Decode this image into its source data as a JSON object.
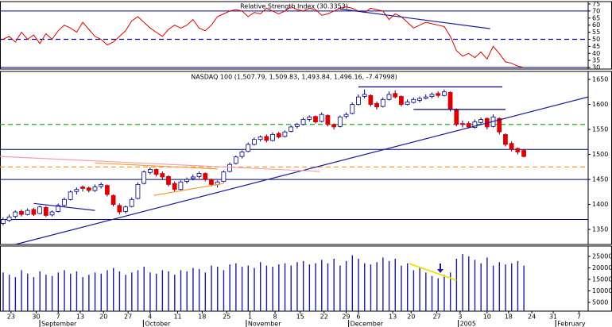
{
  "chart_data": [
    {
      "type": "line",
      "title": "Relative Strength Index (30.3353)",
      "color": "#dd0000",
      "values": [
        50,
        52,
        48,
        55,
        50,
        53,
        47,
        54,
        50,
        56,
        60,
        58,
        55,
        62,
        57,
        52,
        50,
        46,
        48,
        52,
        56,
        63,
        66,
        62,
        58,
        55,
        52,
        57,
        60,
        58,
        60,
        64,
        58,
        56,
        60,
        66,
        68,
        70,
        71,
        70,
        66,
        69,
        68,
        72,
        70,
        68,
        70,
        73,
        71,
        70,
        72,
        71,
        67,
        68,
        70,
        72,
        73,
        72,
        70,
        69,
        72,
        71,
        70,
        64,
        68,
        66,
        62,
        58,
        60,
        62,
        61,
        60,
        59,
        52,
        42,
        38,
        40,
        37,
        41,
        36,
        45,
        40,
        34,
        33,
        31,
        30
      ],
      "xlim": [
        -0.5,
        95.5
      ],
      "ylim": [
        28.9,
        76.7
      ],
      "yticks": [
        30,
        35,
        40,
        45,
        50,
        55,
        60,
        65,
        70,
        75
      ],
      "levels": [
        {
          "value": 70,
          "color": "#000080",
          "dash": false
        },
        {
          "value": 50,
          "color": "#000080",
          "dash": true
        },
        {
          "value": 30,
          "color": "#000080",
          "dash": false
        }
      ],
      "lines": [
        {
          "color": "#1a1aa0",
          "start": [
            55,
            71.5
          ],
          "end": [
            79.5,
            57.5
          ]
        }
      ]
    },
    {
      "type": "candlestick",
      "title": "NASDAQ 100 (1,507.79, 1,509.83, 1,493.84, 1,496.16, -7.47998)",
      "up_color": "#ffffff",
      "down_color": "#dd0000",
      "edge_color": "#000080",
      "ohlc": [
        [
          1362,
          1374,
          1358,
          1370
        ],
        [
          1368,
          1380,
          1365,
          1375
        ],
        [
          1376,
          1388,
          1372,
          1385
        ],
        [
          1386,
          1390,
          1376,
          1380
        ],
        [
          1380,
          1392,
          1378,
          1388
        ],
        [
          1390,
          1393,
          1377,
          1380
        ],
        [
          1382,
          1398,
          1380,
          1395
        ],
        [
          1394,
          1397,
          1375,
          1378
        ],
        [
          1379,
          1388,
          1376,
          1385
        ],
        [
          1386,
          1402,
          1384,
          1398
        ],
        [
          1398,
          1414,
          1395,
          1410
        ],
        [
          1410,
          1428,
          1408,
          1425
        ],
        [
          1426,
          1434,
          1420,
          1430
        ],
        [
          1435,
          1438,
          1426,
          1432
        ],
        [
          1433,
          1436,
          1424,
          1428
        ],
        [
          1428,
          1440,
          1425,
          1435
        ],
        [
          1436,
          1444,
          1432,
          1440
        ],
        [
          1438,
          1440,
          1416,
          1420
        ],
        [
          1418,
          1420,
          1396,
          1400
        ],
        [
          1398,
          1402,
          1380,
          1385
        ],
        [
          1386,
          1398,
          1382,
          1395
        ],
        [
          1396,
          1414,
          1394,
          1410
        ],
        [
          1412,
          1444,
          1410,
          1440
        ],
        [
          1442,
          1468,
          1440,
          1465
        ],
        [
          1464,
          1474,
          1460,
          1470
        ],
        [
          1470,
          1472,
          1456,
          1460
        ],
        [
          1462,
          1466,
          1450,
          1455
        ],
        [
          1456,
          1458,
          1436,
          1440
        ],
        [
          1442,
          1446,
          1426,
          1430
        ],
        [
          1430,
          1448,
          1428,
          1445
        ],
        [
          1446,
          1454,
          1442,
          1450
        ],
        [
          1452,
          1460,
          1448,
          1455
        ],
        [
          1456,
          1466,
          1452,
          1462
        ],
        [
          1462,
          1464,
          1446,
          1450
        ],
        [
          1450,
          1452,
          1436,
          1440
        ],
        [
          1440,
          1448,
          1434,
          1445
        ],
        [
          1446,
          1468,
          1444,
          1465
        ],
        [
          1466,
          1484,
          1464,
          1480
        ],
        [
          1482,
          1498,
          1480,
          1495
        ],
        [
          1496,
          1508,
          1492,
          1505
        ],
        [
          1506,
          1524,
          1504,
          1520
        ],
        [
          1520,
          1534,
          1518,
          1530
        ],
        [
          1530,
          1538,
          1526,
          1535
        ],
        [
          1536,
          1540,
          1524,
          1528
        ],
        [
          1528,
          1544,
          1526,
          1540
        ],
        [
          1542,
          1545,
          1532,
          1535
        ],
        [
          1536,
          1548,
          1534,
          1545
        ],
        [
          1546,
          1558,
          1544,
          1555
        ],
        [
          1556,
          1563,
          1552,
          1560
        ],
        [
          1560,
          1574,
          1558,
          1570
        ],
        [
          1570,
          1578,
          1566,
          1575
        ],
        [
          1576,
          1578,
          1562,
          1565
        ],
        [
          1566,
          1584,
          1564,
          1580
        ],
        [
          1578,
          1580,
          1556,
          1560
        ],
        [
          1560,
          1562,
          1550,
          1555
        ],
        [
          1556,
          1578,
          1554,
          1575
        ],
        [
          1576,
          1584,
          1572,
          1580
        ],
        [
          1582,
          1604,
          1580,
          1600
        ],
        [
          1600,
          1620,
          1598,
          1615
        ],
        [
          1616,
          1630,
          1612,
          1620
        ],
        [
          1618,
          1620,
          1596,
          1600
        ],
        [
          1602,
          1606,
          1590,
          1595
        ],
        [
          1596,
          1614,
          1594,
          1610
        ],
        [
          1610,
          1626,
          1608,
          1620
        ],
        [
          1622,
          1628,
          1612,
          1615
        ],
        [
          1616,
          1618,
          1596,
          1600
        ],
        [
          1600,
          1610,
          1598,
          1605
        ],
        [
          1604,
          1614,
          1602,
          1610
        ],
        [
          1608,
          1616,
          1604,
          1612
        ],
        [
          1612,
          1620,
          1610,
          1615
        ],
        [
          1616,
          1624,
          1612,
          1620
        ],
        [
          1622,
          1626,
          1614,
          1618
        ],
        [
          1618,
          1630,
          1616,
          1625
        ],
        [
          1624,
          1626,
          1586,
          1590
        ],
        [
          1590,
          1592,
          1556,
          1560
        ],
        [
          1562,
          1568,
          1554,
          1560
        ],
        [
          1562,
          1566,
          1552,
          1555
        ],
        [
          1554,
          1570,
          1552,
          1565
        ],
        [
          1564,
          1574,
          1560,
          1570
        ],
        [
          1572,
          1574,
          1550,
          1555
        ],
        [
          1556,
          1580,
          1554,
          1575
        ],
        [
          1572,
          1574,
          1540,
          1545
        ],
        [
          1540,
          1542,
          1516,
          1520
        ],
        [
          1522,
          1526,
          1506,
          1510
        ],
        [
          1512,
          1514,
          1500,
          1505
        ],
        [
          1508,
          1510,
          1494,
          1496
        ]
      ],
      "xlim": [
        -0.5,
        95.5
      ],
      "ylim": [
        1320,
        1666
      ],
      "yticks": [
        1350,
        1400,
        1450,
        1500,
        1550,
        1600,
        1650
      ],
      "levels": [
        {
          "value": 1560,
          "color": "#22aa22",
          "dash": true
        },
        {
          "value": 1510,
          "color": "#000080",
          "dash": false
        },
        {
          "value": 1475,
          "color": "#ff9933",
          "dash": true
        },
        {
          "value": 1450,
          "color": "#000080",
          "dash": false
        },
        {
          "value": 1370,
          "color": "#000080",
          "dash": false
        }
      ],
      "lines": [
        {
          "color": "#1a1aa0",
          "start": [
            2,
            1320
          ],
          "end": [
            95.5,
            1615
          ]
        },
        {
          "color": "#000080",
          "start": [
            58,
            1635
          ],
          "end": [
            81.5,
            1635
          ]
        },
        {
          "color": "#000080",
          "start": [
            67,
            1590
          ],
          "end": [
            82,
            1590
          ]
        },
        {
          "color": "#f4a0b0",
          "start": [
            -0.5,
            1496
          ],
          "end": [
            51.7,
            1466
          ]
        },
        {
          "color": "#ff9933",
          "start": [
            15,
            1483
          ],
          "end": [
            35,
            1471
          ]
        },
        {
          "color": "#ff9933",
          "start": [
            24.6,
            1418
          ],
          "end": [
            36,
            1442
          ]
        },
        {
          "color": "#1a1aa0",
          "start": [
            5,
            1402
          ],
          "end": [
            15,
            1388
          ]
        }
      ]
    },
    {
      "type": "bar",
      "color": "#1a1aa0",
      "values": [
        18000,
        17000,
        16000,
        19000,
        17500,
        16000,
        18500,
        17000,
        16500,
        18000,
        19000,
        17500,
        18500,
        16000,
        17000,
        18000,
        17500,
        19000,
        20000,
        18500,
        17000,
        18000,
        19000,
        20500,
        18000,
        17500,
        19000,
        18500,
        17000,
        19000,
        18500,
        20000,
        19500,
        18000,
        21000,
        20500,
        19000,
        21500,
        22000,
        20500,
        21000,
        20000,
        22500,
        21000,
        20500,
        21500,
        22000,
        21000,
        22500,
        23000,
        21500,
        22000,
        23500,
        22000,
        24000,
        21000,
        23000,
        25500,
        24000,
        22000,
        21500,
        22500,
        24500,
        23000,
        24000,
        21000,
        22000,
        19000,
        20000,
        18000,
        16500,
        15500,
        17000,
        18000,
        24000,
        26000,
        25000,
        23500,
        22000,
        24500,
        21000,
        22500,
        21500,
        22000,
        23000,
        21000
      ],
      "xlim": [
        -0.5,
        95.5
      ],
      "ylim": [
        1200,
        29500
      ],
      "yticks": [
        5000,
        10000,
        15000,
        20000,
        25000
      ],
      "lines": [
        {
          "color": "#f0e020",
          "start": [
            66.3,
            21900
          ],
          "end": [
            74,
            14650
          ]
        }
      ],
      "xticks": [
        {
          "value": 1.3,
          "label": "23"
        },
        {
          "value": 5.4,
          "label": "30"
        },
        {
          "value": 9,
          "label": "7"
        },
        {
          "value": 12.6,
          "label": "13"
        },
        {
          "value": 16.4,
          "label": "20"
        },
        {
          "value": 20.4,
          "label": "27"
        },
        {
          "value": 24,
          "label": "4"
        },
        {
          "value": 28.5,
          "label": "11"
        },
        {
          "value": 32.5,
          "label": "18"
        },
        {
          "value": 36.5,
          "label": "25"
        },
        {
          "value": 40.3,
          "label": "1"
        },
        {
          "value": 44.4,
          "label": "8"
        },
        {
          "value": 48.5,
          "label": "15"
        },
        {
          "value": 52.4,
          "label": "22"
        },
        {
          "value": 56,
          "label": "29"
        },
        {
          "value": 58,
          "label": "6"
        },
        {
          "value": 63.6,
          "label": "13"
        },
        {
          "value": 66.6,
          "label": "20"
        },
        {
          "value": 70.8,
          "label": "27"
        },
        {
          "value": 74.6,
          "label": "3"
        },
        {
          "value": 79,
          "label": "10"
        },
        {
          "value": 82.5,
          "label": "18"
        },
        {
          "value": 86.3,
          "label": "24"
        },
        {
          "value": 89.8,
          "label": "31"
        },
        {
          "value": 94,
          "label": "7"
        }
      ],
      "month_ticks": [
        {
          "value": 6,
          "label": "September"
        },
        {
          "value": 22.9,
          "label": "October"
        },
        {
          "value": 39.7,
          "label": "November"
        },
        {
          "value": 56.4,
          "label": "December"
        },
        {
          "value": 74.3,
          "label": "2005"
        },
        {
          "value": 90.2,
          "label": "February"
        }
      ]
    }
  ]
}
